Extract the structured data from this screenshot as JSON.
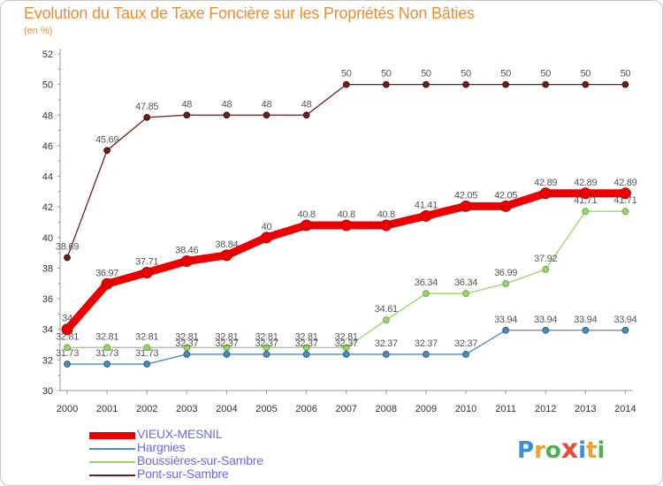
{
  "header": {
    "title": "Evolution du Taux de Taxe Foncière sur les Propriétés Non Bâties",
    "subtitle": "(en %)"
  },
  "logo": {
    "text": "Proxiti",
    "colors": [
      "#3a8fd8",
      "#f0a030",
      "#4caf50",
      "#e84e3c",
      "#3a8fd8",
      "#f0a030",
      "#4caf50"
    ]
  },
  "chart_data": {
    "type": "line",
    "x": [
      "2000",
      "2001",
      "2002",
      "2003",
      "2004",
      "2005",
      "2006",
      "2007",
      "2008",
      "2009",
      "2010",
      "2011",
      "2012",
      "2013",
      "2014"
    ],
    "ylim": [
      30,
      52
    ],
    "yticks": [
      "30",
      "32",
      "34",
      "36",
      "38",
      "40",
      "42",
      "44",
      "46",
      "48",
      "50",
      "52"
    ],
    "grid": false,
    "legend_position": "bottom-left",
    "series": [
      {
        "name": "Pont-sur-Sambre",
        "color": "#6b1e1e",
        "values": [
          38.69,
          45.69,
          47.85,
          48,
          48,
          48,
          48,
          50,
          50,
          50,
          50,
          50,
          50,
          50,
          50
        ],
        "labels": [
          "38.69",
          "45.69",
          "47.85",
          "48",
          "48",
          "48",
          "48",
          "50",
          "50",
          "50",
          "50",
          "50",
          "50",
          "50",
          "50"
        ]
      },
      {
        "name": "VIEUX-MESNIL",
        "color": "#ee0000",
        "values": [
          34,
          36.97,
          37.71,
          38.46,
          38.84,
          40,
          40.8,
          40.8,
          40.8,
          41.41,
          42.05,
          42.05,
          42.89,
          42.89,
          42.89
        ],
        "labels": [
          "34",
          "36.97",
          "37.71",
          "38.46",
          "38.84",
          "40",
          "40.8",
          "40.8",
          "40.8",
          "41.41",
          "42.05",
          "42.05",
          "42.89",
          "42.89",
          "42.89"
        ]
      },
      {
        "name": "Boussières-sur-Sambre",
        "color": "#9ad46a",
        "values": [
          32.81,
          32.81,
          32.81,
          32.81,
          32.81,
          32.81,
          32.81,
          32.81,
          34.61,
          36.34,
          36.34,
          36.99,
          37.92,
          41.71,
          41.71
        ],
        "labels": [
          "32.81",
          "32.81",
          "32.81",
          "32.81",
          "32.81",
          "32.81",
          "32.81",
          "32.81",
          "34.61",
          "36.34",
          "36.34",
          "36.99",
          "37.92",
          "41.71",
          "41.71"
        ]
      },
      {
        "name": "Hargnies",
        "color": "#4a8cc0",
        "values": [
          31.73,
          31.73,
          31.73,
          32.37,
          32.37,
          32.37,
          32.37,
          32.37,
          32.37,
          32.37,
          32.37,
          33.94,
          33.94,
          33.94,
          33.94
        ],
        "labels": [
          "31.73",
          "31.73",
          "31.73",
          "32.37",
          "32.37",
          "32.37",
          "32.37",
          "32.37",
          "32.37",
          "32.37",
          "32.37",
          "33.94",
          "33.94",
          "33.94",
          "33.94"
        ]
      }
    ],
    "legend": [
      "VIEUX-MESNIL",
      "Hargnies",
      "Boussières-sur-Sambre",
      "Pont-sur-Sambre"
    ]
  }
}
